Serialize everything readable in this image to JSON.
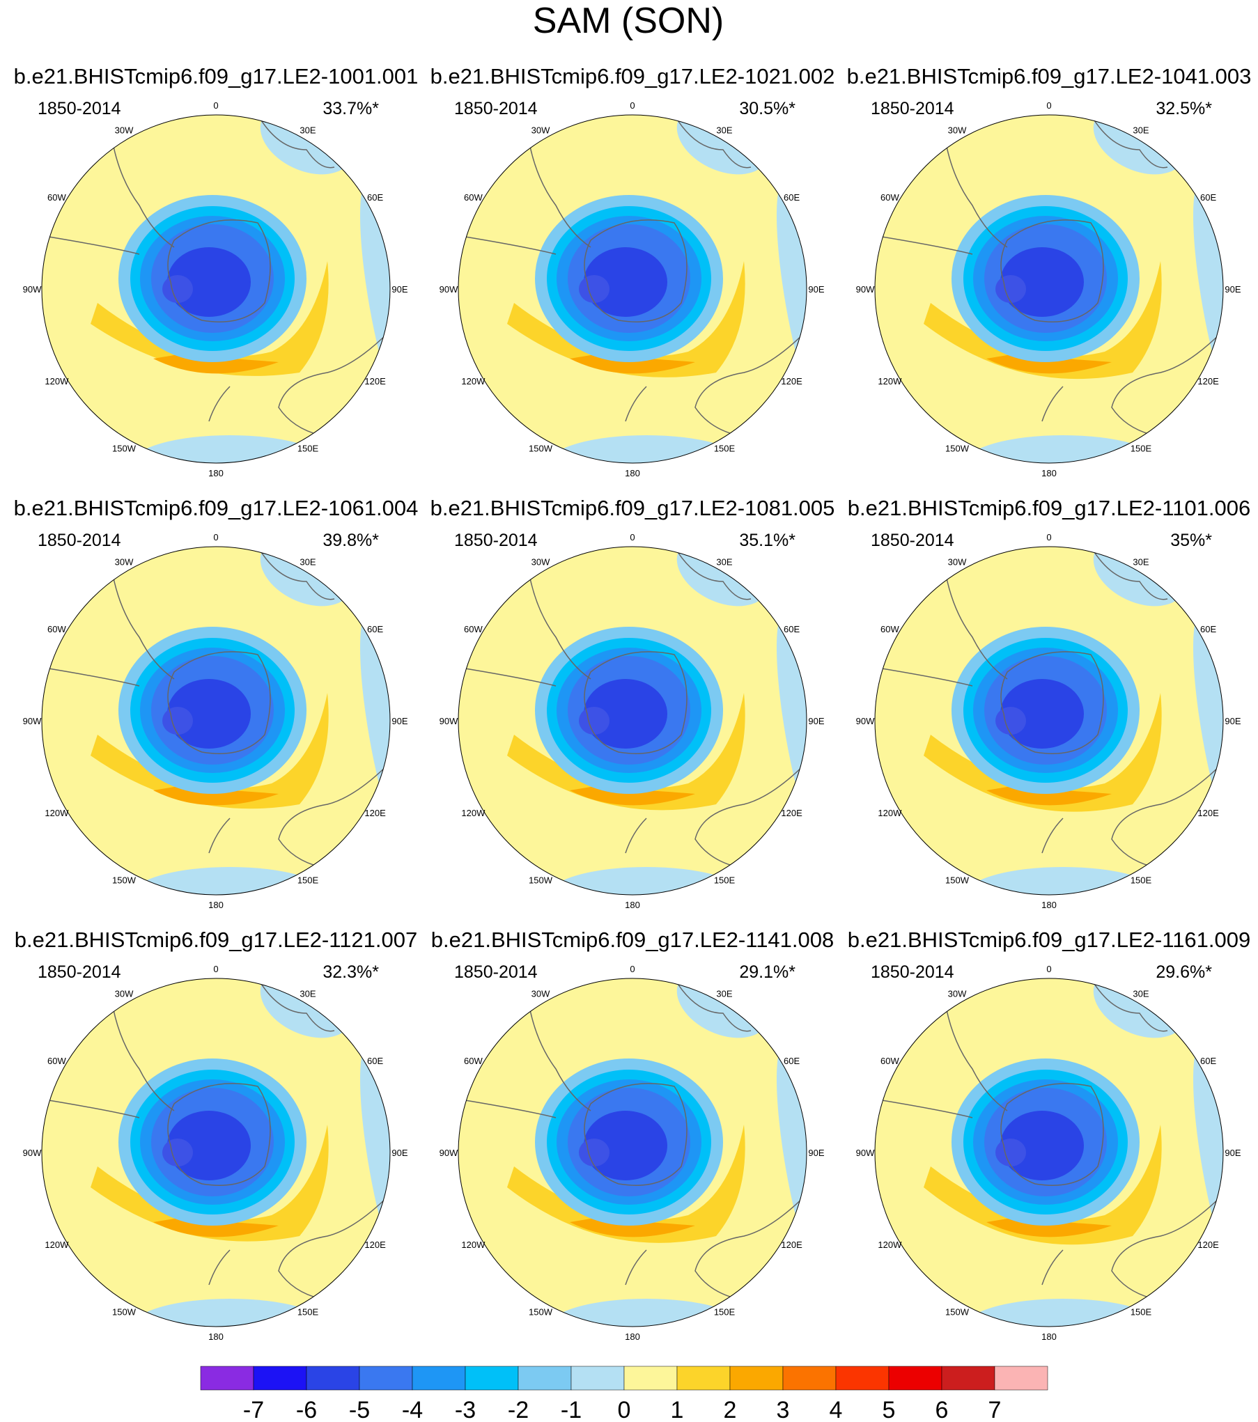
{
  "figure": {
    "title": "SAM (SON)"
  },
  "panels": [
    {
      "name": "b.e21.BHISTcmip6.f09_g17.LE2-1001.001",
      "period": "1850-2014",
      "variance": "33.7%*"
    },
    {
      "name": "b.e21.BHISTcmip6.f09_g17.LE2-1021.002",
      "period": "1850-2014",
      "variance": "30.5%*"
    },
    {
      "name": "b.e21.BHISTcmip6.f09_g17.LE2-1041.003",
      "period": "1850-2014",
      "variance": "32.5%*"
    },
    {
      "name": "b.e21.BHISTcmip6.f09_g17.LE2-1061.004",
      "period": "1850-2014",
      "variance": "39.8%*"
    },
    {
      "name": "b.e21.BHISTcmip6.f09_g17.LE2-1081.005",
      "period": "1850-2014",
      "variance": "35.1%*"
    },
    {
      "name": "b.e21.BHISTcmip6.f09_g17.LE2-1101.006",
      "period": "1850-2014",
      "variance": "35%*"
    },
    {
      "name": "b.e21.BHISTcmip6.f09_g17.LE2-1121.007",
      "period": "1850-2014",
      "variance": "32.3%*"
    },
    {
      "name": "b.e21.BHISTcmip6.f09_g17.LE2-1141.008",
      "period": "1850-2014",
      "variance": "29.1%*"
    },
    {
      "name": "b.e21.BHISTcmip6.f09_g17.LE2-1161.009",
      "period": "1850-2014",
      "variance": "29.6%*"
    }
  ],
  "lon_labels": [
    "0",
    "30E",
    "60E",
    "90E",
    "120E",
    "150E",
    "180",
    "150W",
    "120W",
    "90W",
    "60W",
    "30W"
  ],
  "colorbar": {
    "colors": [
      "#8a2be2",
      "#1c12f5",
      "#2a44e6",
      "#3a78f0",
      "#1e96f5",
      "#00c0f8",
      "#7ccaf2",
      "#b4e0f3",
      "#fdf69a",
      "#fcd42a",
      "#fba800",
      "#fb7300",
      "#fb3500",
      "#ec0000",
      "#cc1e1e",
      "#fbb4b4"
    ],
    "labels": [
      "-7",
      "-6",
      "-5",
      "-4",
      "-3",
      "-2",
      "-1",
      "0",
      "1",
      "2",
      "3",
      "4",
      "5",
      "6",
      "7"
    ]
  }
}
